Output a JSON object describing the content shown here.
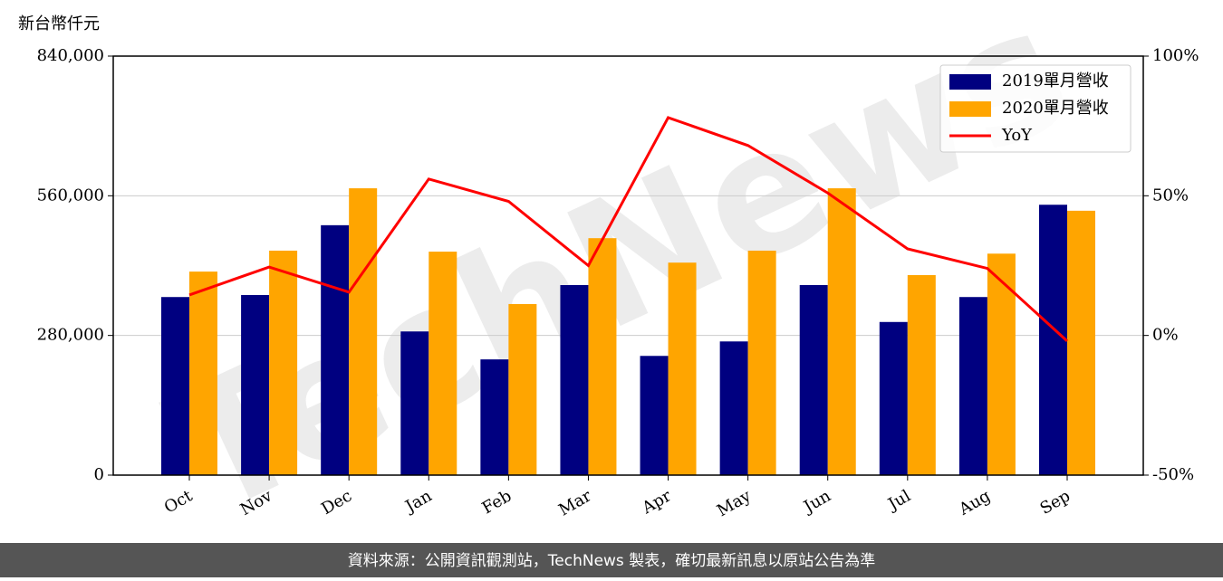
{
  "chart_data": {
    "type": "bar_line",
    "y_label": "新台幣仟元",
    "watermark": "TechNews",
    "footer": "資料來源：公開資訊觀測站，TechNews 製表，確切最新訊息以原站公告為準",
    "categories": [
      "Oct",
      "Nov",
      "Dec",
      "Jan",
      "Feb",
      "Mar",
      "Apr",
      "May",
      "Jun",
      "Jul",
      "Aug",
      "Sep"
    ],
    "series": [
      {
        "name": "2019單月營收",
        "color": "#000080",
        "type": "bar",
        "values": [
          357000,
          361000,
          501000,
          288000,
          232000,
          381000,
          239000,
          268000,
          381000,
          307000,
          357000,
          542000
        ]
      },
      {
        "name": "2020單月營收",
        "color": "#ffa500",
        "type": "bar",
        "values": [
          408000,
          450000,
          575000,
          448000,
          343000,
          475000,
          426000,
          450000,
          575000,
          401000,
          444000,
          530000
        ]
      },
      {
        "name": "YoY",
        "color": "#ff0000",
        "type": "line",
        "axis": "y2",
        "values": [
          14.5,
          24.5,
          15.5,
          56,
          48,
          25,
          78,
          68,
          51,
          31,
          24,
          -2
        ]
      }
    ],
    "ylim": [
      0,
      840000
    ],
    "yticks": [
      {
        "value": 0,
        "label": "0"
      },
      {
        "value": 280000,
        "label": "280,000"
      },
      {
        "value": 560000,
        "label": "560,000"
      },
      {
        "value": 840000,
        "label": "840,000"
      }
    ],
    "y2lim": [
      -50,
      100
    ],
    "y2ticks": [
      {
        "value": -50,
        "label": "-50%"
      },
      {
        "value": 0,
        "label": "0%"
      },
      {
        "value": 50,
        "label": "50%"
      },
      {
        "value": 100,
        "label": "100%"
      }
    ],
    "grid": true,
    "legend": "upper right"
  }
}
